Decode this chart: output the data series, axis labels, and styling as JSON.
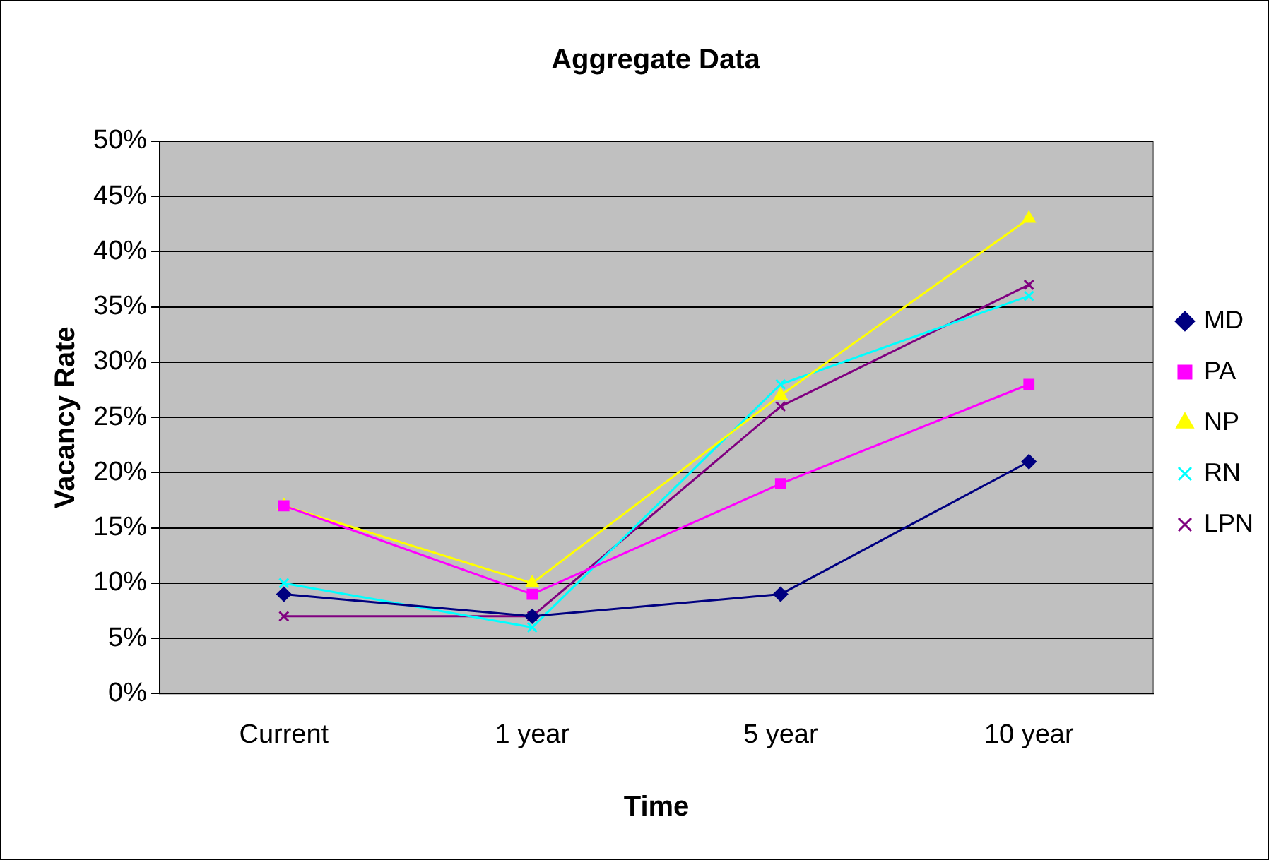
{
  "chart_data": {
    "type": "line",
    "title": "Aggregate Data",
    "xlabel": "Time",
    "ylabel": "Vacancy Rate",
    "categories": [
      "Current",
      "1 year",
      "5 year",
      "10 year"
    ],
    "series": [
      {
        "name": "MD",
        "color": "#000080",
        "marker": "diamond",
        "values": [
          9,
          7,
          9,
          21
        ]
      },
      {
        "name": "PA",
        "color": "#ff00ff",
        "marker": "square",
        "values": [
          17,
          9,
          19,
          28
        ]
      },
      {
        "name": "NP",
        "color": "#ffff00",
        "marker": "triangle",
        "values": [
          17,
          10,
          27,
          43
        ]
      },
      {
        "name": "RN",
        "color": "#00ffff",
        "marker": "cross",
        "values": [
          10,
          6,
          28,
          36
        ]
      },
      {
        "name": "LPN",
        "color": "#800080",
        "marker": "cross",
        "values": [
          7,
          7,
          26,
          37
        ]
      }
    ],
    "ylim": [
      0,
      50
    ],
    "yticks": [
      {
        "value": 0,
        "label": "0%"
      },
      {
        "value": 5,
        "label": "5%"
      },
      {
        "value": 10,
        "label": "10%"
      },
      {
        "value": 15,
        "label": "15%"
      },
      {
        "value": 20,
        "label": "20%"
      },
      {
        "value": 25,
        "label": "25%"
      },
      {
        "value": 30,
        "label": "30%"
      },
      {
        "value": 35,
        "label": "35%"
      },
      {
        "value": 40,
        "label": "40%"
      },
      {
        "value": 45,
        "label": "45%"
      },
      {
        "value": 50,
        "label": "50%"
      }
    ],
    "grid": "y",
    "legend": "right",
    "line_style": "solid"
  }
}
